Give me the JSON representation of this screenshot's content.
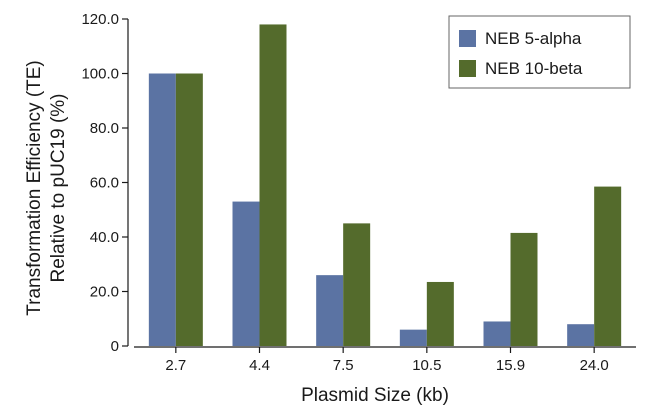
{
  "chart_data": {
    "type": "bar",
    "xlabel": "Plasmid Size (kb)",
    "ylabel_lines": [
      "Transformation Efficiency (TE)",
      "Relative to pUC19 (%)"
    ],
    "categories": [
      "2.7",
      "4.4",
      "7.5",
      "10.5",
      "15.9",
      "24.0"
    ],
    "ylim": [
      0,
      120
    ],
    "yticks": [
      0,
      20,
      40,
      60,
      80,
      100,
      120
    ],
    "ytick_labels": [
      "0",
      "20.0",
      "40.0",
      "60.0",
      "80.0",
      "100.0",
      "120.0"
    ],
    "grid": false,
    "legend_position": "top-right",
    "series": [
      {
        "name": "NEB 5-alpha",
        "color": "#5b73a3",
        "values": [
          100,
          53,
          26,
          6,
          9,
          8
        ]
      },
      {
        "name": "NEB 10-beta",
        "color": "#546b2c",
        "values": [
          100,
          118,
          45,
          23.5,
          41.5,
          58.5
        ]
      }
    ]
  }
}
